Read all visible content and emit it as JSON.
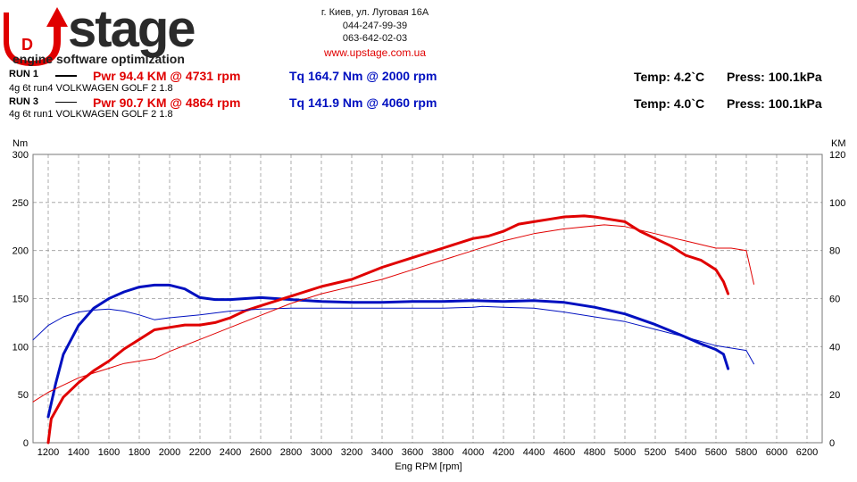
{
  "logo": {
    "brand": "Upstage",
    "tagline": "engine software optimization"
  },
  "contact": {
    "address": "г. Киев, ул. Луговая 16А",
    "phone1": "044-247-99-39",
    "phone2": "063-642-02-03",
    "website": "www.upstage.com.ua"
  },
  "runs": [
    {
      "label": "RUN 1",
      "desc": "4g 6t run4 VOLKWAGEN GOLF 2 1.8",
      "pwr": "Pwr  94.4 KM @ 4731 rpm",
      "tq": "Tq 164.7 Nm @ 2000 rpm",
      "temp": "Temp: 4.2`C",
      "press": "Press: 100.1kPa",
      "line_style": "thick"
    },
    {
      "label": "RUN 3",
      "desc": "4g 6t run1 VOLKWAGEN GOLF 2 1.8",
      "pwr": "Pwr  90.7 KM @ 4864 rpm",
      "tq": "Tq 141.9 Nm @ 4060 rpm",
      "temp": "Temp: 4.0`C",
      "press": "Press: 100.1kPa",
      "line_style": "thin"
    }
  ],
  "colors": {
    "power": "#e00000",
    "torque": "#0010c0",
    "grid": "#9a9a9a"
  },
  "chart_data": {
    "type": "line",
    "xlabel": "Eng RPM [rpm]",
    "ylabel_left": "Nm",
    "ylabel_right": "KM",
    "xlim": [
      1100,
      6300
    ],
    "ylim_left": [
      0,
      300
    ],
    "ylim_right": [
      0,
      120
    ],
    "xticks": [
      1200,
      1400,
      1600,
      1800,
      2000,
      2200,
      2400,
      2600,
      2800,
      3000,
      3200,
      3400,
      3600,
      3800,
      4000,
      4200,
      4400,
      4600,
      4800,
      5000,
      5200,
      5400,
      5600,
      5800,
      6000,
      6200
    ],
    "yticks_left": [
      0,
      50,
      100,
      150,
      200,
      250,
      300
    ],
    "yticks_right": [
      0,
      20,
      40,
      60,
      80,
      100,
      120
    ],
    "grid": true,
    "series": [
      {
        "name": "RUN 1",
        "measure": "torque",
        "axis": "left",
        "x": [
          1200,
          1250,
          1300,
          1400,
          1500,
          1600,
          1700,
          1800,
          1900,
          2000,
          2100,
          2200,
          2300,
          2400,
          2500,
          2600,
          2700,
          2800,
          3000,
          3200,
          3400,
          3600,
          3800,
          4000,
          4200,
          4400,
          4600,
          4800,
          5000,
          5200,
          5400,
          5500,
          5600,
          5650,
          5680
        ],
        "y": [
          27,
          62,
          92,
          122,
          140,
          150,
          157,
          162,
          164,
          164,
          160,
          151,
          149,
          149,
          150,
          151,
          150,
          149,
          147,
          146,
          146,
          147,
          147,
          148,
          147,
          148,
          146,
          141,
          134,
          123,
          110,
          103,
          97,
          92,
          77
        ]
      },
      {
        "name": "RUN 1",
        "measure": "power",
        "axis": "right",
        "x": [
          1200,
          1220,
          1300,
          1400,
          1500,
          1600,
          1700,
          1800,
          1900,
          2000,
          2100,
          2200,
          2300,
          2400,
          2500,
          2600,
          2800,
          3000,
          3200,
          3400,
          3600,
          3800,
          4000,
          4100,
          4200,
          4300,
          4400,
          4500,
          4600,
          4731,
          4800,
          4900,
          5000,
          5100,
          5200,
          5300,
          5400,
          5500,
          5600,
          5650,
          5680
        ],
        "y": [
          0,
          10,
          19,
          25,
          30,
          34,
          39,
          43,
          47,
          48,
          49,
          49,
          50,
          52,
          55,
          57,
          61,
          65,
          68,
          73,
          77,
          81,
          85,
          86,
          88,
          91,
          92,
          93,
          94,
          94.4,
          94,
          93,
          92,
          88,
          85,
          82,
          78,
          76,
          72,
          67,
          62
        ]
      },
      {
        "name": "RUN 3",
        "measure": "torque",
        "axis": "left",
        "x": [
          1100,
          1200,
          1300,
          1400,
          1500,
          1600,
          1700,
          1800,
          1900,
          2000,
          2200,
          2400,
          2600,
          2800,
          3000,
          3200,
          3400,
          3600,
          3800,
          4000,
          4060,
          4200,
          4400,
          4600,
          4800,
          5000,
          5200,
          5400,
          5600,
          5800,
          5850
        ],
        "y": [
          107,
          122,
          131,
          136,
          138,
          139,
          137,
          133,
          128,
          130,
          133,
          137,
          139,
          140,
          140,
          140,
          140,
          140,
          140,
          141,
          141.9,
          141,
          140,
          136,
          131,
          126,
          118,
          110,
          101,
          96,
          82
        ]
      },
      {
        "name": "RUN 3",
        "measure": "power",
        "axis": "right",
        "x": [
          1100,
          1200,
          1300,
          1400,
          1500,
          1600,
          1700,
          1800,
          1900,
          2000,
          2200,
          2400,
          2600,
          2800,
          3000,
          3200,
          3400,
          3600,
          3800,
          4000,
          4200,
          4400,
          4600,
          4864,
          5000,
          5200,
          5400,
          5600,
          5700,
          5800,
          5850
        ],
        "y": [
          17,
          21,
          24,
          27,
          29,
          31,
          33,
          34,
          35,
          38,
          43,
          48,
          53,
          58,
          62,
          65,
          68,
          72,
          76,
          80,
          84,
          87,
          89,
          90.7,
          90,
          87,
          84,
          81,
          81,
          80,
          66
        ]
      }
    ]
  }
}
